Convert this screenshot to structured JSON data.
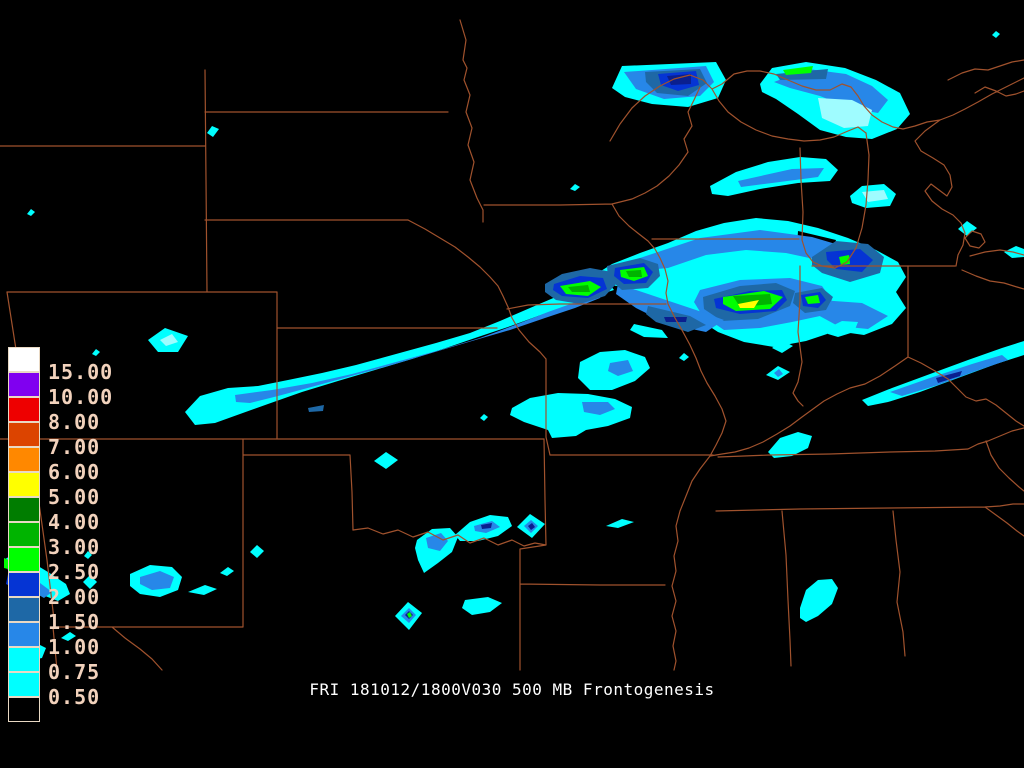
{
  "app": {
    "kind": "weather-model-graphics-display",
    "background": "#000000"
  },
  "status_line": {
    "text": "FRI 181012/1800V030 500 MB Frontogenesis",
    "color": "#FFFFFF"
  },
  "map": {
    "region": "central-united-states-state-borders",
    "border_color": "#A0522D"
  },
  "colorbar": {
    "border_color": "#E9D9C4",
    "label_color": "#F2D2BC",
    "entries": [
      {
        "color": "#FFFFFF",
        "label_below": "15.00"
      },
      {
        "color": "#8000F0",
        "label_below": "10.00"
      },
      {
        "color": "#EE0000",
        "label_below": "8.00"
      },
      {
        "color": "#DC4400",
        "label_below": "7.00"
      },
      {
        "color": "#FF8800",
        "label_below": "6.00"
      },
      {
        "color": "#FFFF00",
        "label_below": "5.00"
      },
      {
        "color": "#007D00",
        "label_below": "4.00"
      },
      {
        "color": "#00B400",
        "label_below": "3.00"
      },
      {
        "color": "#00FF00",
        "label_below": "2.50"
      },
      {
        "color": "#0534D4",
        "label_below": "2.00"
      },
      {
        "color": "#1E68A6",
        "label_below": "1.50"
      },
      {
        "color": "#2787E8",
        "label_below": "1.00"
      },
      {
        "color": "#00FFFF",
        "label_below": "0.75"
      },
      {
        "color": "#00FFFF",
        "label_below": "0.50"
      },
      {
        "color": "#000000",
        "label_below": ""
      }
    ]
  },
  "chart_data": {
    "type": "heatmap",
    "title": "FRI 181012/1800V030 500 MB Frontogenesis",
    "field": "500 MB Frontogenesis",
    "valid_label": "FRI 181012/1800V030",
    "legend_position": "left",
    "grid": false,
    "levels": [
      0.5,
      0.75,
      1.0,
      1.5,
      2.0,
      2.5,
      3.0,
      4.0,
      5.0,
      6.0,
      7.0,
      8.0,
      10.0,
      15.0
    ],
    "level_fill_colors": [
      "#00FFFF",
      "#00FFFF",
      "#2787E8",
      "#1E68A6",
      "#0534D4",
      "#00FF00",
      "#00B400",
      "#007D00",
      "#FFFF00",
      "#FF8800",
      "#DC4400",
      "#EE0000",
      "#8000F0",
      "#FFFFFF"
    ],
    "notable_regions": [
      {
        "area": "northern Minnesota band",
        "peak_band": "2.00-2.50"
      },
      {
        "area": "Lake Superior / upper Michigan band",
        "peak_band": "2.50-3.00"
      },
      {
        "area": "southwest Nebraska to Iowa long band",
        "peak_band": "3.00-4.00"
      },
      {
        "area": "northeast Missouri / west-central Illinois core",
        "peak_band": "5.00-6.00"
      },
      {
        "area": "northern Illinois / Lake Michigan core",
        "peak_band": "3.00-4.00"
      },
      {
        "area": "Red River Texas-Oklahoma border blobs",
        "peak_band": "2.00-2.50"
      },
      {
        "area": "Indiana-Ohio band",
        "peak_band": "1.00-1.50"
      },
      {
        "area": "Alabama blob",
        "peak_band": "0.50-0.75"
      }
    ]
  }
}
